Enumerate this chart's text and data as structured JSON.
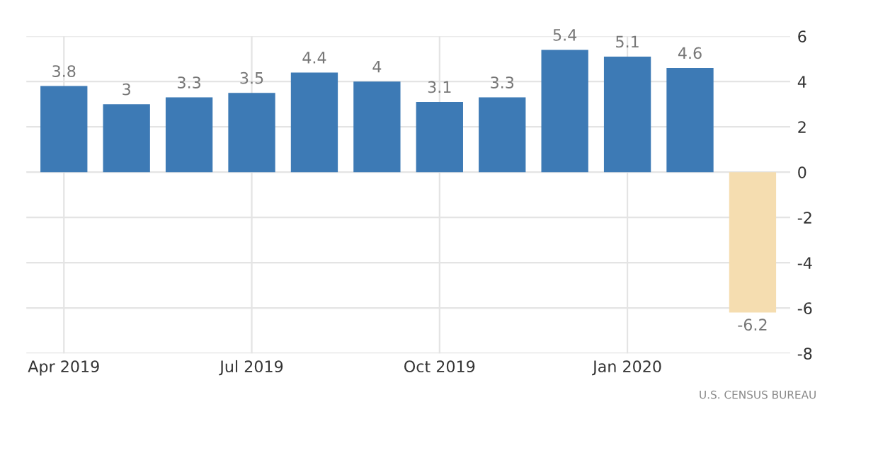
{
  "chart_data": {
    "type": "bar",
    "categories": [
      "Apr 2019",
      null,
      null,
      "Jul 2019",
      null,
      null,
      "Oct 2019",
      null,
      null,
      "Jan 2020",
      null,
      null
    ],
    "values": [
      3.8,
      3,
      3.3,
      3.5,
      4.4,
      4,
      3.1,
      3.3,
      5.4,
      5.1,
      4.6,
      -6.2
    ],
    "colors": [
      "#3d7ab5",
      "#3d7ab5",
      "#3d7ab5",
      "#3d7ab5",
      "#3d7ab5",
      "#3d7ab5",
      "#3d7ab5",
      "#3d7ab5",
      "#3d7ab5",
      "#3d7ab5",
      "#3d7ab5",
      "#f5ddb0"
    ],
    "ylim": [
      -8,
      6
    ],
    "yticks": [
      -8,
      -6,
      -4,
      -2,
      0,
      2,
      4,
      6
    ],
    "grid": true,
    "data_labels": true,
    "annotations": [
      "U.S. CENSUS BUREAU"
    ]
  }
}
